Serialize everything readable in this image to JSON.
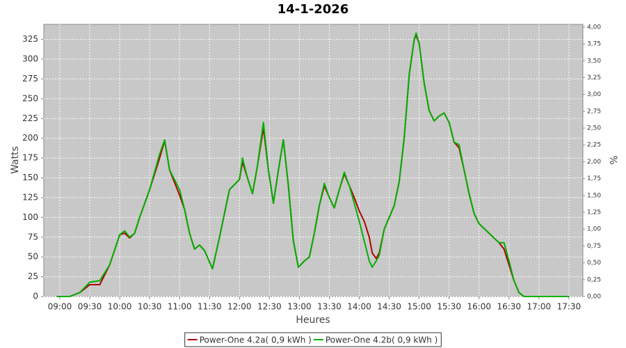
{
  "chart_data": {
    "type": "line",
    "title": "14-1-2026",
    "x_label": "Heures",
    "y_label": "Watts",
    "y2_label": "%",
    "grid": true,
    "legend": "bottom",
    "x": [
      "08:57",
      "09:00",
      "09:10",
      "09:20",
      "09:30",
      "09:40",
      "09:50",
      "10:00",
      "10:05",
      "10:10",
      "10:15",
      "10:20",
      "10:30",
      "10:40",
      "10:45",
      "10:50",
      "11:00",
      "11:05",
      "11:10",
      "11:15",
      "11:20",
      "11:25",
      "11:33",
      "11:40",
      "11:50",
      "12:00",
      "12:03",
      "12:08",
      "12:13",
      "12:18",
      "12:24",
      "12:29",
      "12:34",
      "12:39",
      "12:44",
      "12:49",
      "12:54",
      "12:59",
      "13:05",
      "13:10",
      "13:15",
      "13:20",
      "13:25",
      "13:30",
      "13:35",
      "13:40",
      "13:45",
      "13:50",
      "13:55",
      "14:00",
      "14:05",
      "14:10",
      "14:13",
      "14:17",
      "14:20",
      "14:25",
      "14:30",
      "14:35",
      "14:40",
      "14:45",
      "14:50",
      "14:55",
      "14:57",
      "15:00",
      "15:05",
      "15:10",
      "15:15",
      "15:20",
      "15:25",
      "15:30",
      "15:35",
      "15:40",
      "15:45",
      "15:50",
      "15:55",
      "16:00",
      "16:10",
      "16:20",
      "16:25",
      "16:30",
      "16:35",
      "16:40",
      "16:45",
      "17:00",
      "17:30"
    ],
    "series": [
      {
        "name": "Power-One 4.2a( 0,9 kWh )",
        "color": "#b00000",
        "values": [
          0,
          0,
          0,
          5,
          15,
          15,
          40,
          78,
          80,
          74,
          80,
          100,
          135,
          175,
          197,
          160,
          128,
          110,
          80,
          60,
          65,
          58,
          35,
          75,
          135,
          148,
          170,
          150,
          130,
          165,
          213,
          160,
          118,
          160,
          198,
          140,
          70,
          37,
          45,
          50,
          80,
          115,
          140,
          125,
          112,
          135,
          155,
          140,
          125,
          108,
          95,
          75,
          55,
          48,
          55,
          85,
          100,
          115,
          145,
          200,
          280,
          325,
          330,
          320,
          270,
          235,
          222,
          228,
          232,
          220,
          195,
          188,
          160,
          130,
          105,
          92,
          80,
          68,
          60,
          40,
          20,
          5,
          0,
          0,
          0
        ]
      },
      {
        "name": "Power-One 4.2b( 0,9 kWh )",
        "color": "#00b000",
        "values": [
          0,
          0,
          0,
          5,
          18,
          20,
          40,
          78,
          83,
          75,
          80,
          100,
          135,
          180,
          198,
          160,
          135,
          110,
          80,
          60,
          65,
          58,
          35,
          75,
          135,
          148,
          175,
          150,
          130,
          165,
          220,
          160,
          118,
          160,
          198,
          140,
          70,
          37,
          45,
          50,
          80,
          115,
          143,
          125,
          112,
          135,
          157,
          140,
          118,
          95,
          70,
          45,
          37,
          45,
          52,
          85,
          100,
          115,
          145,
          200,
          280,
          325,
          333,
          320,
          270,
          235,
          222,
          228,
          232,
          220,
          195,
          192,
          160,
          130,
          105,
          92,
          80,
          68,
          68,
          45,
          20,
          5,
          0,
          0,
          0
        ]
      }
    ],
    "xlim": [
      "08:44",
      "17:44"
    ],
    "xticks": [
      "09:00",
      "09:30",
      "10:00",
      "10:30",
      "11:00",
      "11:30",
      "12:00",
      "12:30",
      "13:00",
      "13:30",
      "14:00",
      "14:30",
      "15:00",
      "15:30",
      "16:00",
      "16:30",
      "17:00",
      "17:30"
    ],
    "ylim": [
      0,
      344
    ],
    "yticks": [
      0,
      25,
      50,
      75,
      100,
      125,
      150,
      175,
      200,
      225,
      250,
      275,
      300,
      325
    ],
    "y2lim": [
      0,
      4.04
    ],
    "y2ticks": [
      {
        "value": 0,
        "label": "0,00"
      },
      {
        "value": 0.25,
        "label": "0,25"
      },
      {
        "value": 0.5,
        "label": "0,50"
      },
      {
        "value": 0.75,
        "label": "0,75"
      },
      {
        "value": 1,
        "label": "1,00"
      },
      {
        "value": 1.25,
        "label": "1,25"
      },
      {
        "value": 1.5,
        "label": "1,50"
      },
      {
        "value": 1.75,
        "label": "1,75"
      },
      {
        "value": 2,
        "label": "2,00"
      },
      {
        "value": 2.25,
        "label": "2,25"
      },
      {
        "value": 2.5,
        "label": "2,50"
      },
      {
        "value": 2.75,
        "label": "2,75"
      },
      {
        "value": 3,
        "label": "3,00"
      },
      {
        "value": 3.25,
        "label": "3,25"
      },
      {
        "value": 3.5,
        "label": "3,50"
      },
      {
        "value": 3.75,
        "label": "3,75"
      },
      {
        "value": 4,
        "label": "4,00"
      }
    ]
  }
}
